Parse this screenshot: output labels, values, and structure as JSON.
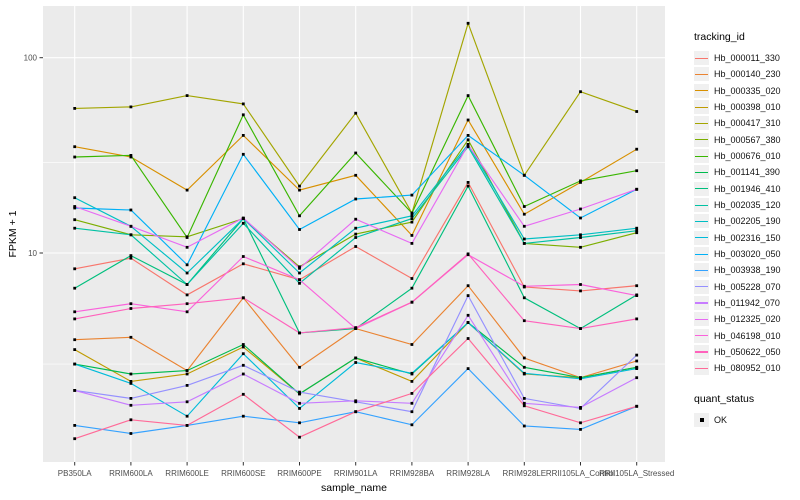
{
  "chart_data": {
    "type": "line",
    "title": "",
    "xlabel": "sample_name",
    "ylabel": "FPKM + 1",
    "y_scale": "log10",
    "ylim": [
      0.85,
      176
    ],
    "grid": "on",
    "legend_position": "right",
    "y_tick_labels": [
      "100",
      "10"
    ],
    "y_major_ticks": [
      100,
      10
    ],
    "y_minor_gridlines": [
      29,
      2.7
    ],
    "categories": [
      "PB350LA",
      "RRIM600LA",
      "RRIM600LE",
      "RRIM600SE",
      "RRIM600PE",
      "RRIM901LA",
      "RRIM928BA",
      "RRIM928LA",
      "RRIM928LE",
      "RRII105LA_Control",
      "RRII105LA_Stressed"
    ],
    "series": [
      {
        "name": "Hb_000011_330",
        "color": "#F8766D",
        "values": [
          8.3,
          9.4,
          6.1,
          8.8,
          7.3,
          10.8,
          7.4,
          23,
          6.7,
          6.4,
          6.8
        ]
      },
      {
        "name": "Hb_000140_230",
        "color": "#EA8331",
        "values": [
          3.6,
          3.7,
          2.5,
          5.9,
          2.6,
          4.1,
          3.4,
          6.8,
          2.9,
          2.3,
          2.8
        ]
      },
      {
        "name": "Hb_000335_020",
        "color": "#D89000",
        "values": [
          35,
          31,
          21,
          40,
          21,
          25,
          12.3,
          48,
          15.8,
          23,
          34
        ]
      },
      {
        "name": "Hb_000398_010",
        "color": "#C09B00",
        "values": [
          3.2,
          2.2,
          2.4,
          3.3,
          1.9,
          2.9,
          2.2,
          4.4,
          2.4,
          2.3,
          2.6
        ]
      },
      {
        "name": "Hb_000417_310",
        "color": "#A3A500",
        "values": [
          55,
          56,
          64,
          58,
          22,
          52,
          16,
          150,
          25,
          67,
          53
        ]
      },
      {
        "name": "Hb_000567_380",
        "color": "#7CAE00",
        "values": [
          14.8,
          12.4,
          12.1,
          15,
          8.5,
          12.5,
          14.4,
          38,
          11.2,
          10.7,
          12.7
        ]
      },
      {
        "name": "Hb_000676_010",
        "color": "#39B600",
        "values": [
          31,
          31.6,
          12,
          51,
          15.5,
          32.5,
          16,
          64,
          17.3,
          23.4,
          26.4
        ]
      },
      {
        "name": "Hb_001141_390",
        "color": "#00BB4E",
        "values": [
          2.7,
          2.4,
          2.5,
          3.4,
          1.9,
          2.9,
          2.4,
          4.4,
          2.6,
          2.3,
          2.6
        ]
      },
      {
        "name": "Hb_001946_410",
        "color": "#00BF7D",
        "values": [
          6.6,
          9.7,
          6.9,
          15,
          3.9,
          4.1,
          6.6,
          22,
          5.9,
          4.1,
          6.1
        ]
      },
      {
        "name": "Hb_002035_120",
        "color": "#00C1A3",
        "values": [
          13.4,
          12.4,
          6.9,
          14.2,
          7.0,
          12.0,
          15.0,
          35,
          11.2,
          12.0,
          13.0
        ]
      },
      {
        "name": "Hb_002205_190",
        "color": "#00BFC4",
        "values": [
          19.2,
          13.7,
          7.9,
          15,
          7.9,
          13.4,
          15.5,
          36,
          11.8,
          12.4,
          13.4
        ]
      },
      {
        "name": "Hb_002316_150",
        "color": "#00BBDA",
        "values": [
          2.7,
          2.15,
          1.46,
          3.05,
          1.6,
          2.75,
          2.42,
          4.4,
          2.42,
          2.27,
          2.56
        ]
      },
      {
        "name": "Hb_003020_050",
        "color": "#00B0F6",
        "values": [
          17,
          16.6,
          8.7,
          32,
          13.2,
          18.9,
          19.8,
          40,
          25,
          15.1,
          21.2
        ]
      },
      {
        "name": "Hb_003938_190",
        "color": "#35A2FF",
        "values": [
          1.31,
          1.19,
          1.31,
          1.46,
          1.35,
          1.54,
          1.32,
          2.56,
          1.3,
          1.25,
          1.64
        ]
      },
      {
        "name": "Hb_005228_070",
        "color": "#9590FF",
        "values": [
          1.98,
          1.8,
          2.1,
          2.66,
          1.94,
          1.73,
          1.54,
          6.05,
          1.8,
          1.6,
          3.0
        ]
      },
      {
        "name": "Hb_011942_070",
        "color": "#C77CFF",
        "values": [
          1.98,
          1.66,
          1.73,
          2.4,
          1.7,
          1.75,
          1.7,
          4.8,
          1.7,
          1.62,
          2.3
        ]
      },
      {
        "name": "Hb_012325_020",
        "color": "#E76BF3",
        "values": [
          17.3,
          13.7,
          10.7,
          15.1,
          8.35,
          14.9,
          11.2,
          35.8,
          13.7,
          16.8,
          21.2
        ]
      },
      {
        "name": "Hb_046198_010",
        "color": "#FA62DB",
        "values": [
          5.0,
          5.5,
          5.0,
          9.6,
          7.3,
          4.1,
          5.6,
          9.8,
          6.75,
          6.9,
          6.05
        ]
      },
      {
        "name": "Hb_050622_050",
        "color": "#FF62BC",
        "values": [
          4.6,
          5.2,
          5.5,
          5.9,
          3.9,
          4.15,
          5.6,
          9.9,
          4.5,
          4.1,
          4.6
        ]
      },
      {
        "name": "Hb_080952_010",
        "color": "#FF6A98",
        "values": [
          1.12,
          1.4,
          1.31,
          1.89,
          1.14,
          1.54,
          1.91,
          3.65,
          1.65,
          1.35,
          1.64
        ]
      }
    ],
    "legend": {
      "tracking_title": "tracking_id",
      "quant_title": "quant_status",
      "quant_items": [
        {
          "label": "OK"
        }
      ]
    },
    "point_color": "#000000",
    "panel_bg": "#EBEBEB",
    "grid_color": "#FFFFFF",
    "tick_text_color": "#4D4D4D"
  }
}
